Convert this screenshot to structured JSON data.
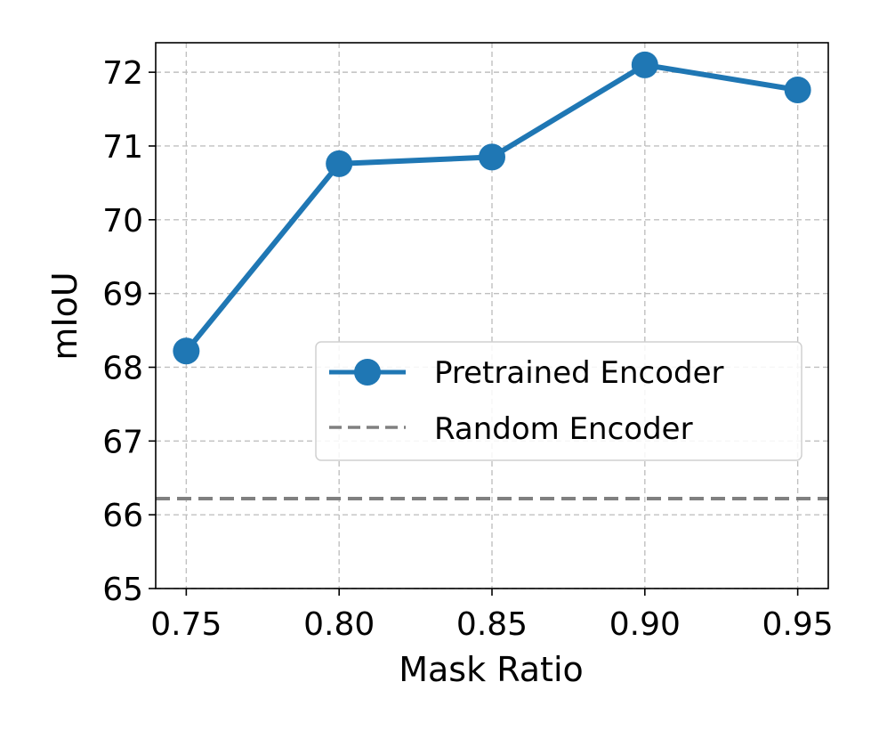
{
  "chart_data": {
    "type": "line",
    "xlabel": "Mask Ratio",
    "ylabel": "mIoU",
    "x": [
      0.75,
      0.8,
      0.85,
      0.9,
      0.95
    ],
    "x_tick_labels": [
      "0.75",
      "0.80",
      "0.85",
      "0.90",
      "0.95"
    ],
    "xlim": [
      0.74,
      0.96
    ],
    "ylim": [
      65,
      72.4
    ],
    "y_ticks": [
      65,
      66,
      67,
      68,
      69,
      70,
      71,
      72
    ],
    "y_tick_labels": [
      "65",
      "66",
      "67",
      "68",
      "69",
      "70",
      "71",
      "72"
    ],
    "grid": true,
    "legend_position": "center-right",
    "series": [
      {
        "name": "Pretrained Encoder",
        "style": "solid-line-with-markers",
        "color": "#1f77b4",
        "values": [
          68.22,
          70.76,
          70.85,
          72.1,
          71.76
        ]
      },
      {
        "name": "Random Encoder",
        "style": "dashed-horizontal-line",
        "color": "#808080",
        "constant_value": 66.22
      }
    ]
  }
}
